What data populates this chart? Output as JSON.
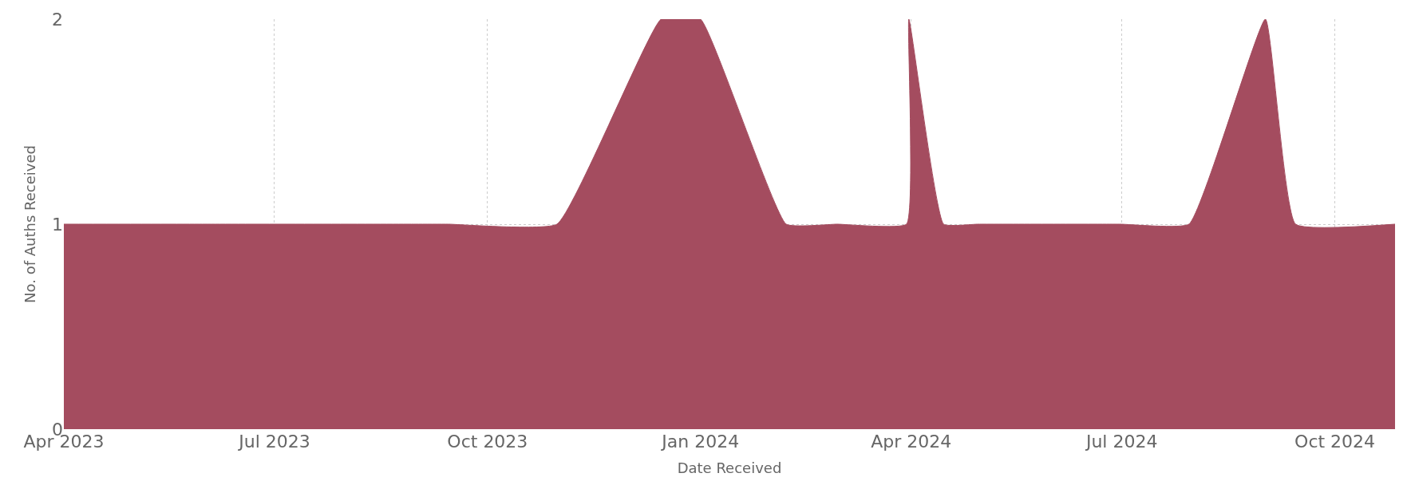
{
  "chart_data": {
    "type": "area",
    "xlabel": "Date Received",
    "ylabel": "No. of Auths Received",
    "x": [
      "2023-04-01",
      "2023-06-01",
      "2023-08-31",
      "2023-09-14",
      "2023-10-31",
      "2023-12-15",
      "2024-01-01",
      "2024-02-07",
      "2024-02-29",
      "2024-03-30",
      "2024-03-31",
      "2024-04-15",
      "2024-04-30",
      "2024-06-30",
      "2024-07-30",
      "2024-09-01",
      "2024-09-14",
      "2024-10-27"
    ],
    "series": [
      {
        "color": "#a44c5f",
        "values": [
          1,
          1,
          1,
          1,
          1,
          2,
          2,
          1,
          1,
          1,
          2,
          1,
          1,
          1,
          1,
          2,
          1,
          1
        ]
      }
    ],
    "xlim": [
      "2023-04-01",
      "2024-10-27"
    ],
    "xticks": [
      {
        "value": "2023-04-01",
        "label": "Apr 2023"
      },
      {
        "value": "2023-07-01",
        "label": "Jul 2023"
      },
      {
        "value": "2023-10-01",
        "label": "Oct 2023"
      },
      {
        "value": "2024-01-01",
        "label": "Jan 2024"
      },
      {
        "value": "2024-04-01",
        "label": "Apr 2024"
      },
      {
        "value": "2024-07-01",
        "label": "Jul 2024"
      },
      {
        "value": "2024-10-01",
        "label": "Oct 2024"
      }
    ],
    "ylim": [
      0,
      2
    ],
    "yticks": [
      0,
      1,
      2
    ],
    "grid": true
  }
}
